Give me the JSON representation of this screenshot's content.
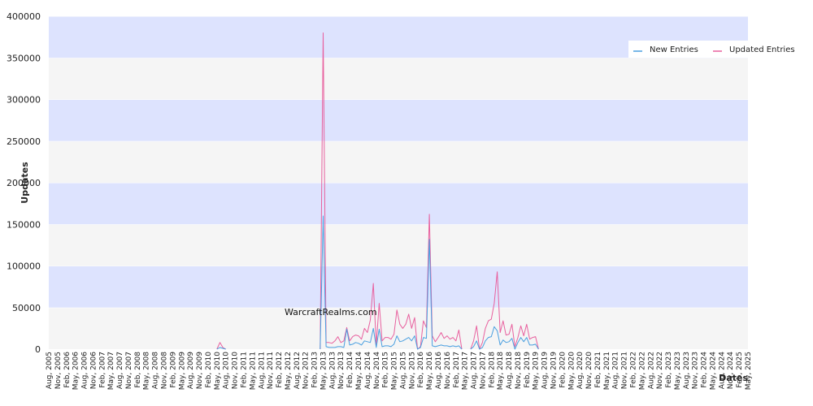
{
  "chart_data": {
    "type": "line",
    "watermark": "WarcraftRealms.com",
    "xlabel": "Dates",
    "ylabel": "Updates",
    "ylim": [
      0,
      400000
    ],
    "yticks": [
      0,
      50000,
      100000,
      150000,
      200000,
      250000,
      300000,
      350000,
      400000
    ],
    "y_tick_labels": [
      "0",
      "50000",
      "100000",
      "150000",
      "200000",
      "250000",
      "300000",
      "350000",
      "400000"
    ],
    "x_start": "2005-08",
    "x_end": "2025-05",
    "x_tick_labels": [
      "Aug, 2005",
      "Nov, 2005",
      "Feb, 2006",
      "May, 2006",
      "Aug, 2006",
      "Nov, 2006",
      "Feb, 2007",
      "May, 2007",
      "Aug, 2007",
      "Nov, 2007",
      "Feb, 2008",
      "May, 2008",
      "Aug, 2008",
      "Nov, 2008",
      "Feb, 2009",
      "May, 2009",
      "Aug, 2009",
      "Nov, 2009",
      "Feb, 2010",
      "May, 2010",
      "Aug, 2010",
      "Nov, 2010",
      "Feb, 2011",
      "May, 2011",
      "Aug, 2011",
      "Nov, 2011",
      "Feb, 2012",
      "May, 2012",
      "Aug, 2012",
      "Nov, 2012",
      "Feb, 2013",
      "May, 2013",
      "Aug, 2013",
      "Nov, 2013",
      "Feb, 2014",
      "May, 2014",
      "Aug, 2014",
      "Nov, 2014",
      "Feb, 2015",
      "May, 2015",
      "Aug, 2015",
      "Nov, 2015",
      "Feb, 2016",
      "May, 2016",
      "Aug, 2016",
      "Nov, 2016",
      "Feb, 2017",
      "May, 2017",
      "Aug, 2017",
      "Nov, 2017",
      "Feb, 2018",
      "May, 2018",
      "Aug, 2018",
      "Nov, 2018",
      "Feb, 2019",
      "May, 2019",
      "Aug, 2019",
      "Nov, 2019",
      "Feb, 2020",
      "May, 2020",
      "Aug, 2020",
      "Nov, 2020",
      "Feb, 2021",
      "May, 2021",
      "Aug, 2021",
      "Nov, 2021",
      "Feb, 2022",
      "May, 2022",
      "Aug, 2022",
      "Nov, 2022",
      "Feb, 2023",
      "May, 2023",
      "Aug, 2023",
      "Nov, 2023",
      "Feb, 2024",
      "May, 2024",
      "Aug, 2024",
      "Nov, 2024",
      "Feb, 2025",
      "May, 2025"
    ],
    "legend_position": "top-right",
    "grid": "alternating horizontal bands",
    "band_colors": [
      "#f5f5f5",
      "#dde3fe"
    ],
    "series": [
      {
        "name": "New Entries",
        "color": "#4a9fe0",
        "points": [
          [
            "2010-05",
            0
          ],
          [
            "2010-06",
            2000
          ],
          [
            "2010-07",
            1000
          ],
          [
            "2010-08",
            0
          ],
          [
            "2013-04",
            0
          ],
          [
            "2013-05",
            160000
          ],
          [
            "2013-06",
            3000
          ],
          [
            "2013-07",
            2000
          ],
          [
            "2013-08",
            2000
          ],
          [
            "2013-09",
            2000
          ],
          [
            "2013-10",
            3000
          ],
          [
            "2013-11",
            3000
          ],
          [
            "2013-12",
            2000
          ],
          [
            "2014-01",
            24000
          ],
          [
            "2014-02",
            5000
          ],
          [
            "2014-03",
            6000
          ],
          [
            "2014-04",
            8000
          ],
          [
            "2014-05",
            7000
          ],
          [
            "2014-06",
            5000
          ],
          [
            "2014-07",
            10000
          ],
          [
            "2014-08",
            9000
          ],
          [
            "2014-09",
            8000
          ],
          [
            "2014-10",
            25000
          ],
          [
            "2014-11",
            2000
          ],
          [
            "2014-12",
            24000
          ],
          [
            "2015-01",
            3000
          ],
          [
            "2015-02",
            4000
          ],
          [
            "2015-03",
            4000
          ],
          [
            "2015-04",
            3000
          ],
          [
            "2015-05",
            6000
          ],
          [
            "2015-06",
            16000
          ],
          [
            "2015-07",
            9000
          ],
          [
            "2015-08",
            10000
          ],
          [
            "2015-09",
            12000
          ],
          [
            "2015-10",
            14000
          ],
          [
            "2015-11",
            10000
          ],
          [
            "2015-12",
            16000
          ],
          [
            "2016-01",
            0
          ],
          [
            "2016-02",
            2000
          ],
          [
            "2016-03",
            14000
          ],
          [
            "2016-04",
            13000
          ],
          [
            "2016-05",
            132000
          ],
          [
            "2016-06",
            4000
          ],
          [
            "2016-07",
            3000
          ],
          [
            "2016-08",
            4000
          ],
          [
            "2016-09",
            5000
          ],
          [
            "2016-10",
            4000
          ],
          [
            "2016-11",
            4000
          ],
          [
            "2016-12",
            3000
          ],
          [
            "2017-01",
            4000
          ],
          [
            "2017-02",
            3000
          ],
          [
            "2017-03",
            4000
          ],
          [
            "2017-04",
            0
          ],
          [
            "2017-07",
            0
          ],
          [
            "2017-08",
            3000
          ],
          [
            "2017-09",
            10000
          ],
          [
            "2017-10",
            0
          ],
          [
            "2017-11",
            2000
          ],
          [
            "2017-12",
            10000
          ],
          [
            "2018-01",
            14000
          ],
          [
            "2018-02",
            15000
          ],
          [
            "2018-03",
            27000
          ],
          [
            "2018-04",
            22000
          ],
          [
            "2018-05",
            5000
          ],
          [
            "2018-06",
            11000
          ],
          [
            "2018-07",
            8000
          ],
          [
            "2018-08",
            9000
          ],
          [
            "2018-09",
            13000
          ],
          [
            "2018-10",
            0
          ],
          [
            "2018-11",
            8000
          ],
          [
            "2018-12",
            14000
          ],
          [
            "2019-01",
            9000
          ],
          [
            "2019-02",
            14000
          ],
          [
            "2019-03",
            5000
          ],
          [
            "2019-04",
            5000
          ],
          [
            "2019-05",
            6000
          ],
          [
            "2019-06",
            0
          ]
        ]
      },
      {
        "name": "Updated Entries",
        "color": "#e8609e",
        "points": [
          [
            "2010-05",
            0
          ],
          [
            "2010-06",
            8000
          ],
          [
            "2010-07",
            2000
          ],
          [
            "2010-08",
            0
          ],
          [
            "2013-04",
            0
          ],
          [
            "2013-05",
            380000
          ],
          [
            "2013-06",
            8000
          ],
          [
            "2013-07",
            8000
          ],
          [
            "2013-08",
            7000
          ],
          [
            "2013-09",
            10000
          ],
          [
            "2013-10",
            15000
          ],
          [
            "2013-11",
            8000
          ],
          [
            "2013-12",
            10000
          ],
          [
            "2014-01",
            26000
          ],
          [
            "2014-02",
            10000
          ],
          [
            "2014-03",
            15000
          ],
          [
            "2014-04",
            17000
          ],
          [
            "2014-05",
            16000
          ],
          [
            "2014-06",
            12000
          ],
          [
            "2014-07",
            25000
          ],
          [
            "2014-08",
            20000
          ],
          [
            "2014-09",
            35000
          ],
          [
            "2014-10",
            79000
          ],
          [
            "2014-11",
            5000
          ],
          [
            "2014-12",
            55000
          ],
          [
            "2015-01",
            10000
          ],
          [
            "2015-02",
            14000
          ],
          [
            "2015-03",
            14000
          ],
          [
            "2015-04",
            12000
          ],
          [
            "2015-05",
            18000
          ],
          [
            "2015-06",
            47000
          ],
          [
            "2015-07",
            30000
          ],
          [
            "2015-08",
            25000
          ],
          [
            "2015-09",
            30000
          ],
          [
            "2015-10",
            42000
          ],
          [
            "2015-11",
            25000
          ],
          [
            "2015-12",
            38000
          ],
          [
            "2016-01",
            0
          ],
          [
            "2016-02",
            3000
          ],
          [
            "2016-03",
            34000
          ],
          [
            "2016-04",
            26000
          ],
          [
            "2016-05",
            162000
          ],
          [
            "2016-06",
            16000
          ],
          [
            "2016-07",
            9000
          ],
          [
            "2016-08",
            14000
          ],
          [
            "2016-09",
            20000
          ],
          [
            "2016-10",
            13000
          ],
          [
            "2016-11",
            16000
          ],
          [
            "2016-12",
            12000
          ],
          [
            "2017-01",
            14000
          ],
          [
            "2017-02",
            10000
          ],
          [
            "2017-03",
            23000
          ],
          [
            "2017-04",
            0
          ],
          [
            "2017-07",
            0
          ],
          [
            "2017-08",
            10000
          ],
          [
            "2017-09",
            28000
          ],
          [
            "2017-10",
            0
          ],
          [
            "2017-11",
            8000
          ],
          [
            "2017-12",
            25000
          ],
          [
            "2018-01",
            34000
          ],
          [
            "2018-02",
            36000
          ],
          [
            "2018-03",
            55000
          ],
          [
            "2018-04",
            93000
          ],
          [
            "2018-05",
            20000
          ],
          [
            "2018-06",
            34000
          ],
          [
            "2018-07",
            17000
          ],
          [
            "2018-08",
            18000
          ],
          [
            "2018-09",
            30000
          ],
          [
            "2018-10",
            3000
          ],
          [
            "2018-11",
            14000
          ],
          [
            "2018-12",
            28000
          ],
          [
            "2019-01",
            16000
          ],
          [
            "2019-02",
            30000
          ],
          [
            "2019-03",
            12000
          ],
          [
            "2019-04",
            14000
          ],
          [
            "2019-05",
            15000
          ],
          [
            "2019-06",
            0
          ]
        ]
      }
    ]
  }
}
